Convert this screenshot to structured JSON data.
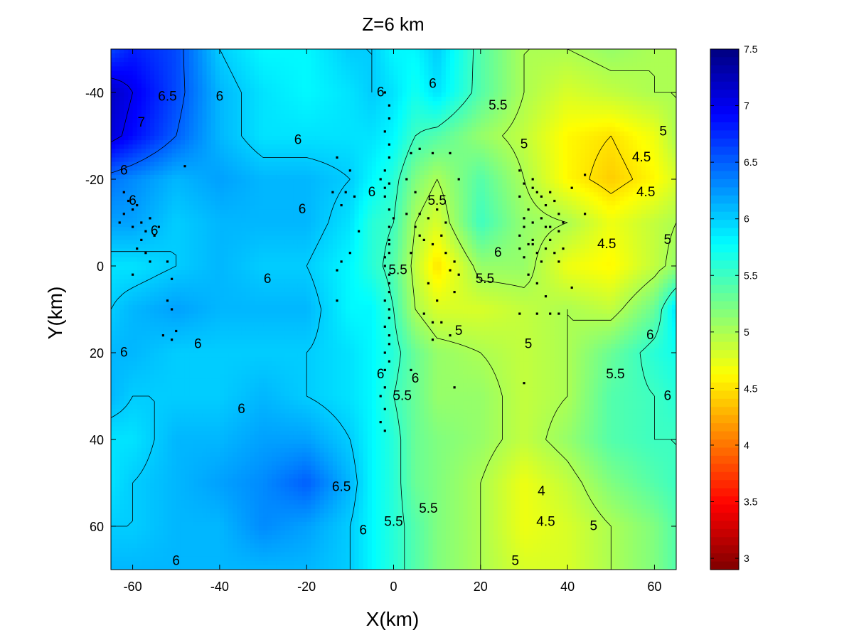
{
  "chart_data": {
    "type": "heatmap",
    "subtype": "filled-contour",
    "title": "Z=6 km",
    "xlabel": "X(km)",
    "ylabel": "Y(km)",
    "xlim": [
      -65,
      65
    ],
    "ylim": [
      -50,
      70
    ],
    "y_axis_reversed": true,
    "x_ticks": [
      -60,
      -40,
      -20,
      0,
      20,
      40,
      60
    ],
    "y_ticks": [
      -40,
      -20,
      0,
      20,
      40,
      60
    ],
    "colormap": "jet-reversed",
    "color_range": [
      2.9,
      7.5
    ],
    "colorbar_ticks": [
      3,
      3.5,
      4,
      4.5,
      5,
      5.5,
      6,
      6.5,
      7,
      7.5
    ],
    "colorbar_ticks_labels": [
      "3",
      "3.5",
      "4",
      "4.5",
      "5",
      "5.5",
      "6",
      "6.5",
      "7",
      "7.5"
    ],
    "grid_x": [
      -65,
      -60,
      -50,
      -40,
      -30,
      -20,
      -10,
      -5,
      0,
      5,
      10,
      20,
      30,
      40,
      50,
      60,
      65
    ],
    "grid_y": [
      -50,
      -40,
      -30,
      -20,
      -10,
      0,
      10,
      20,
      30,
      40,
      50,
      60,
      70
    ],
    "velocity": [
      [
        6.6,
        6.8,
        6.6,
        6.0,
        5.8,
        5.8,
        6.0,
        6.0,
        5.8,
        5.8,
        6.0,
        5.4,
        5.0,
        5.0,
        5.1,
        5.0,
        5.0
      ],
      [
        7.2,
        7.0,
        6.6,
        6.1,
        5.9,
        5.8,
        5.9,
        6.0,
        5.9,
        5.7,
        5.9,
        5.4,
        5.0,
        4.8,
        4.9,
        5.0,
        5.0
      ],
      [
        7.1,
        6.9,
        6.5,
        6.1,
        5.9,
        5.9,
        5.9,
        5.9,
        5.8,
        5.5,
        5.4,
        5.1,
        4.9,
        4.6,
        4.5,
        4.7,
        5.0
      ],
      [
        6.4,
        6.3,
        6.1,
        6.2,
        6.1,
        6.1,
        6.0,
        5.8,
        5.6,
        5.2,
        5.0,
        5.4,
        5.0,
        4.6,
        4.4,
        4.6,
        4.8
      ],
      [
        6.2,
        6.2,
        6.0,
        6.1,
        6.1,
        6.1,
        5.9,
        5.6,
        5.5,
        5.0,
        4.8,
        5.5,
        5.1,
        5.0,
        4.7,
        4.9,
        5.0
      ],
      [
        5.9,
        5.9,
        6.0,
        6.1,
        6.0,
        6.0,
        5.8,
        5.6,
        5.4,
        4.9,
        4.5,
        5.1,
        5.1,
        4.7,
        4.6,
        4.9,
        5.1
      ],
      [
        6.0,
        6.1,
        6.2,
        6.1,
        6.1,
        6.1,
        5.8,
        5.8,
        5.5,
        5.0,
        4.8,
        4.8,
        4.9,
        5.0,
        4.9,
        5.3,
        5.9
      ],
      [
        6.1,
        6.1,
        6.0,
        6.0,
        6.0,
        6.0,
        5.9,
        5.8,
        5.6,
        5.3,
        5.1,
        5.0,
        4.9,
        5.0,
        5.3,
        5.6,
        5.7
      ],
      [
        6.1,
        6.0,
        6.0,
        6.0,
        6.1,
        6.0,
        5.9,
        5.8,
        5.5,
        5.3,
        5.1,
        5.1,
        4.9,
        5.0,
        5.4,
        5.5,
        5.6
      ],
      [
        5.9,
        5.9,
        6.1,
        6.1,
        6.2,
        6.2,
        6.0,
        5.8,
        5.6,
        5.3,
        5.2,
        5.1,
        4.9,
        5.1,
        5.4,
        5.5,
        5.5
      ],
      [
        5.9,
        6.0,
        6.1,
        6.2,
        6.3,
        6.5,
        6.1,
        5.8,
        5.6,
        5.3,
        5.2,
        5.0,
        4.7,
        4.9,
        5.2,
        5.4,
        5.5
      ],
      [
        6.0,
        6.0,
        6.1,
        6.1,
        6.3,
        6.2,
        6.0,
        5.8,
        5.6,
        5.4,
        5.2,
        5.0,
        4.7,
        4.8,
        5.0,
        5.2,
        5.4
      ],
      [
        6.1,
        6.1,
        6.1,
        6.1,
        6.1,
        6.1,
        6.0,
        5.8,
        5.6,
        5.4,
        5.2,
        5.0,
        4.8,
        4.8,
        5.0,
        5.2,
        5.4
      ]
    ],
    "contour_levels": [
      4,
      4.5,
      5,
      5.5,
      6,
      6.5,
      7
    ],
    "contour_labels": [
      {
        "text": "6.5",
        "x": -52,
        "y": -39
      },
      {
        "text": "6",
        "x": -40,
        "y": -39
      },
      {
        "text": "6",
        "x": 9,
        "y": -42
      },
      {
        "text": "7",
        "x": -58,
        "y": -33
      },
      {
        "text": "6",
        "x": -62,
        "y": -22
      },
      {
        "text": "6",
        "x": -22,
        "y": -29
      },
      {
        "text": "6",
        "x": -60,
        "y": -15
      },
      {
        "text": "6",
        "x": -21,
        "y": -13
      },
      {
        "text": "6",
        "x": -55,
        "y": -8
      },
      {
        "text": "6",
        "x": -29,
        "y": 3
      },
      {
        "text": "6",
        "x": -45,
        "y": 18
      },
      {
        "text": "6",
        "x": -62,
        "y": 20
      },
      {
        "text": "6",
        "x": -35,
        "y": 33
      },
      {
        "text": "6",
        "x": -3,
        "y": -40
      },
      {
        "text": "6",
        "x": -5,
        "y": -17
      },
      {
        "text": "6",
        "x": -3,
        "y": 25
      },
      {
        "text": "6",
        "x": 5,
        "y": 26
      },
      {
        "text": "6",
        "x": -7,
        "y": 61
      },
      {
        "text": "6",
        "x": -50,
        "y": 68
      },
      {
        "text": "6",
        "x": 24,
        "y": -3
      },
      {
        "text": "6",
        "x": 59,
        "y": 16
      },
      {
        "text": "6",
        "x": 63,
        "y": 30
      },
      {
        "text": "6.5",
        "x": -12,
        "y": 51
      },
      {
        "text": "5.5",
        "x": 24,
        "y": -37
      },
      {
        "text": "5",
        "x": 30,
        "y": -28
      },
      {
        "text": "5",
        "x": 62,
        "y": -31
      },
      {
        "text": "4.5",
        "x": 57,
        "y": -25
      },
      {
        "text": "4.5",
        "x": 58,
        "y": -17
      },
      {
        "text": "4.5",
        "x": 49,
        "y": -5
      },
      {
        "text": "5",
        "x": 63,
        "y": -6
      },
      {
        "text": "5.5",
        "x": 10,
        "y": -15
      },
      {
        "text": "5.5",
        "x": 1,
        "y": 1
      },
      {
        "text": "5.5",
        "x": 21,
        "y": 3
      },
      {
        "text": "5",
        "x": 15,
        "y": 15
      },
      {
        "text": "5",
        "x": 31,
        "y": 18
      },
      {
        "text": "5.5",
        "x": 51,
        "y": 25
      },
      {
        "text": "5.5",
        "x": 2,
        "y": 30
      },
      {
        "text": "5.5",
        "x": 8,
        "y": 56
      },
      {
        "text": "5.5",
        "x": 0,
        "y": 59
      },
      {
        "text": "4",
        "x": 34,
        "y": 52
      },
      {
        "text": "4.5",
        "x": 35,
        "y": 59
      },
      {
        "text": "5",
        "x": 46,
        "y": 60
      },
      {
        "text": "5",
        "x": 28,
        "y": 68
      }
    ],
    "scatter_points": [
      [
        -2,
        -40
      ],
      [
        -1,
        -37
      ],
      [
        -1,
        -34
      ],
      [
        -2,
        -31
      ],
      [
        -1,
        -28
      ],
      [
        -1,
        -25
      ],
      [
        -2,
        -22
      ],
      [
        -1,
        -19
      ],
      [
        -2,
        -16
      ],
      [
        -1,
        -13
      ],
      [
        0,
        -11
      ],
      [
        -1,
        -9
      ],
      [
        -1,
        -6
      ],
      [
        -1,
        -3
      ],
      [
        -2,
        0
      ],
      [
        -1,
        2
      ],
      [
        -1,
        4
      ],
      [
        -1,
        6
      ],
      [
        -2,
        8
      ],
      [
        -1,
        10
      ],
      [
        -1,
        12
      ],
      [
        -2,
        14
      ],
      [
        -1,
        16
      ],
      [
        -1,
        18
      ],
      [
        -2,
        20
      ],
      [
        -1,
        22
      ],
      [
        -2,
        24
      ],
      [
        -2,
        28
      ],
      [
        -3,
        30
      ],
      [
        -2,
        33
      ],
      [
        -3,
        36
      ],
      [
        -2,
        38
      ],
      [
        -1,
        -5
      ],
      [
        -2,
        -2
      ],
      [
        -2,
        -18
      ],
      [
        -3,
        -20
      ],
      [
        -62,
        -17
      ],
      [
        -61,
        -15
      ],
      [
        -60,
        -13
      ],
      [
        -62,
        -12
      ],
      [
        -59,
        -14
      ],
      [
        -58,
        -10
      ],
      [
        -60,
        -9
      ],
      [
        -63,
        -10
      ],
      [
        -56,
        -11
      ],
      [
        -57,
        -8
      ],
      [
        -55,
        -7
      ],
      [
        -54,
        -9
      ],
      [
        -58,
        -6
      ],
      [
        -57,
        -3
      ],
      [
        -59,
        -4
      ],
      [
        -52,
        -1
      ],
      [
        -56,
        -1
      ],
      [
        -51,
        3
      ],
      [
        -52,
        8
      ],
      [
        -51,
        10
      ],
      [
        -48,
        -23
      ],
      [
        -53,
        16
      ],
      [
        -50,
        15
      ],
      [
        -51,
        17
      ],
      [
        -60,
        2
      ],
      [
        -13,
        -25
      ],
      [
        -10,
        -22
      ],
      [
        -11,
        -17
      ],
      [
        -9,
        -16
      ],
      [
        -12,
        -14
      ],
      [
        -14,
        -17
      ],
      [
        -8,
        -8
      ],
      [
        -10,
        -3
      ],
      [
        -12,
        -1
      ],
      [
        -13,
        1
      ],
      [
        -13,
        8
      ],
      [
        4,
        -26
      ],
      [
        6,
        -27
      ],
      [
        9,
        -26
      ],
      [
        13,
        -26
      ],
      [
        15,
        -20
      ],
      [
        3,
        -20
      ],
      [
        5,
        -17
      ],
      [
        6,
        -12
      ],
      [
        8,
        -11
      ],
      [
        5,
        -9
      ],
      [
        6,
        -7
      ],
      [
        7,
        -6
      ],
      [
        3,
        -12
      ],
      [
        10,
        -13
      ],
      [
        12,
        -10
      ],
      [
        11,
        -7
      ],
      [
        9,
        -5
      ],
      [
        12,
        -3
      ],
      [
        14,
        -1
      ],
      [
        13,
        1
      ],
      [
        15,
        2
      ],
      [
        8,
        4
      ],
      [
        10,
        8
      ],
      [
        7,
        11
      ],
      [
        9,
        13
      ],
      [
        9,
        17
      ],
      [
        11,
        13
      ],
      [
        13,
        16
      ],
      [
        14,
        28
      ],
      [
        4,
        24
      ],
      [
        4,
        -3
      ],
      [
        14,
        6
      ],
      [
        29,
        -22
      ],
      [
        30,
        -19
      ],
      [
        32,
        -20
      ],
      [
        33,
        -17
      ],
      [
        34,
        -16
      ],
      [
        35,
        -14
      ],
      [
        36,
        -17
      ],
      [
        37,
        -15
      ],
      [
        38,
        -12
      ],
      [
        34,
        -11
      ],
      [
        32,
        -10
      ],
      [
        30,
        -9
      ],
      [
        29,
        -7
      ],
      [
        31,
        -5
      ],
      [
        32,
        -6
      ],
      [
        33,
        -3
      ],
      [
        35,
        -4
      ],
      [
        36,
        -6
      ],
      [
        37,
        -3
      ],
      [
        39,
        -4
      ],
      [
        36,
        -9
      ],
      [
        38,
        -8
      ],
      [
        39,
        -10
      ],
      [
        41,
        -18
      ],
      [
        29,
        -4
      ],
      [
        30,
        -2
      ],
      [
        31,
        2
      ],
      [
        33,
        4
      ],
      [
        35,
        7
      ],
      [
        36,
        11
      ],
      [
        38,
        11
      ],
      [
        41,
        5
      ],
      [
        44,
        -21
      ],
      [
        44,
        -12
      ],
      [
        31,
        -13
      ],
      [
        29,
        -16
      ],
      [
        32,
        -18
      ],
      [
        30,
        -11
      ],
      [
        35,
        -9
      ],
      [
        32,
        -5
      ],
      [
        34,
        -1
      ],
      [
        38,
        -1
      ],
      [
        33,
        11
      ],
      [
        29,
        11
      ],
      [
        30,
        27
      ]
    ]
  }
}
